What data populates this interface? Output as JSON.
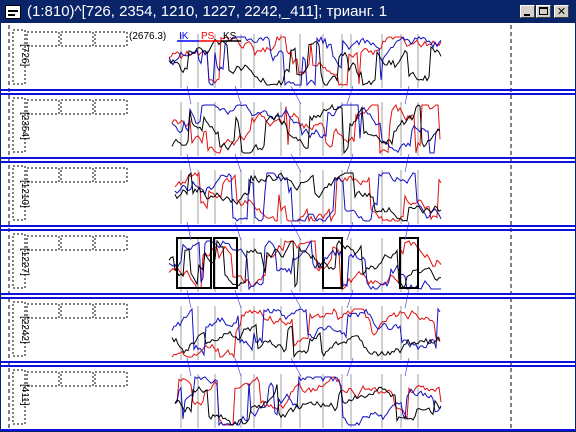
{
  "window": {
    "title": "(1:810)^[726, 2354, 1210, 1227, 2242,_411]; трианг. 1",
    "controls": [
      "minimize",
      "maximize",
      "close"
    ]
  },
  "header": {
    "value": "(2676.3)",
    "legend": [
      "IK",
      "PS",
      "KS"
    ]
  },
  "colors": {
    "titlebar": "#0a246a",
    "separator": "#1010e0",
    "series_red": "#e01010",
    "series_blue": "#1010c0",
    "series_black": "#000000",
    "guide": "#a0a0a0",
    "ik": "#0000ff",
    "ps": "#ff0000",
    "ks": "#000000"
  },
  "chart_data": {
    "type": "line",
    "rows": [
      {
        "label": "[726]"
      },
      {
        "label": "[2354]"
      },
      {
        "label": "[1210]"
      },
      {
        "label": "[1227]"
      },
      {
        "label": "[2242]"
      },
      {
        "label": "[411]"
      }
    ]
  }
}
